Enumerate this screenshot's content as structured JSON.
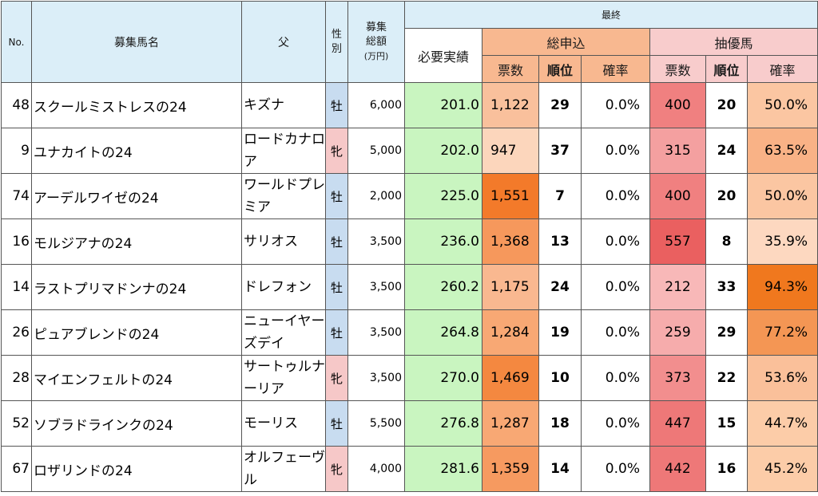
{
  "headers": {
    "no": "No.",
    "name": "募集馬名",
    "sire": "父",
    "sex": [
      "性",
      "別"
    ],
    "amount": [
      "募集",
      "総額",
      "(万円)"
    ],
    "final": "最終",
    "required": "必要実績",
    "total": "総申込",
    "lottery": "抽優馬",
    "votes": "票数",
    "rank": "順位",
    "rate": "確率"
  },
  "colors": {
    "header_blue": "#dbeef8",
    "header_orange": "#f8b890",
    "header_pink": "#f8cccc",
    "required_green": "#c9f5c0",
    "male": "#c8dcf0",
    "female": "#f6c8c8"
  },
  "rows": [
    {
      "no": "48",
      "name": "スクールミストレスの24",
      "sire": "キズナ",
      "sex": "牡",
      "sex_type": "male",
      "amount": "6,000",
      "required": "201.0",
      "total_votes": "1,122",
      "total_rank": "29",
      "total_rate": "0.0%",
      "lot_votes": "400",
      "lot_rank": "20",
      "lot_rate": "50.0%",
      "total_color": "#f9c09c",
      "lot_color": "#f08080",
      "rate_color": "#fbc6a2"
    },
    {
      "no": "9",
      "name": "ユナカイトの24",
      "sire": "ロードカナロア",
      "sex": "牝",
      "sex_type": "female",
      "amount": "5,000",
      "required": "202.0",
      "total_votes": "947",
      "total_rank": "37",
      "total_rate": "0.0%",
      "lot_votes": "315",
      "lot_rank": "24",
      "lot_rate": "63.5%",
      "total_color": "#fcd6bc",
      "lot_color": "#f4a0a0",
      "rate_color": "#f9b286"
    },
    {
      "no": "74",
      "name": "アーデルワイゼの24",
      "sire": "ワールドプレミア",
      "sex": "牡",
      "sex_type": "male",
      "amount": "2,000",
      "required": "225.0",
      "total_votes": "1,551",
      "total_rank": "7",
      "total_rate": "0.0%",
      "lot_votes": "400",
      "lot_rank": "20",
      "lot_rate": "50.0%",
      "total_color": "#f37a2a",
      "lot_color": "#f08080",
      "rate_color": "#fbc6a2"
    },
    {
      "no": "16",
      "name": "モルジアナの24",
      "sire": "サリオス",
      "sex": "牡",
      "sex_type": "male",
      "amount": "3,500",
      "required": "236.0",
      "total_votes": "1,368",
      "total_rank": "13",
      "total_rate": "0.0%",
      "lot_votes": "557",
      "lot_rank": "8",
      "lot_rate": "35.9%",
      "total_color": "#f6985c",
      "lot_color": "#ea6060",
      "rate_color": "#fdd8c0"
    },
    {
      "no": "14",
      "name": "ラストプリマドンナの24",
      "sire": "ドレフォン",
      "sex": "牡",
      "sex_type": "male",
      "amount": "3,500",
      "required": "260.2",
      "total_votes": "1,175",
      "total_rank": "24",
      "total_rate": "0.0%",
      "lot_votes": "212",
      "lot_rank": "33",
      "lot_rate": "94.3%",
      "total_color": "#f9b890",
      "lot_color": "#f8b8b8",
      "rate_color": "#f0781e"
    },
    {
      "no": "26",
      "name": "ピュアブレンドの24",
      "sire": "ニューイヤーズデイ",
      "sex": "牡",
      "sex_type": "male",
      "amount": "3,500",
      "required": "264.8",
      "total_votes": "1,284",
      "total_rank": "19",
      "total_rate": "0.0%",
      "lot_votes": "259",
      "lot_rank": "29",
      "lot_rate": "77.2%",
      "total_color": "#f8a874",
      "lot_color": "#f6acac",
      "rate_color": "#f49654"
    },
    {
      "no": "28",
      "name": "マイエンフェルトの24",
      "sire": "サートゥルナーリア",
      "sex": "牝",
      "sex_type": "female",
      "amount": "3,500",
      "required": "270.0",
      "total_votes": "1,469",
      "total_rank": "10",
      "total_rate": "0.0%",
      "lot_votes": "373",
      "lot_rank": "22",
      "lot_rate": "53.6%",
      "total_color": "#f48840",
      "lot_color": "#f28e8e",
      "rate_color": "#fac09a"
    },
    {
      "no": "52",
      "name": "ソブラドラインクの24",
      "sire": "モーリス",
      "sex": "牡",
      "sex_type": "male",
      "amount": "5,500",
      "required": "276.8",
      "total_votes": "1,287",
      "total_rank": "18",
      "total_rate": "0.0%",
      "lot_votes": "447",
      "lot_rank": "15",
      "lot_rate": "44.7%",
      "total_color": "#f8a874",
      "lot_color": "#ee7878",
      "rate_color": "#fccca8"
    },
    {
      "no": "67",
      "name": "ロザリンドの24",
      "sire": "オルフェーヴル",
      "sex": "牝",
      "sex_type": "female",
      "amount": "4,000",
      "required": "281.6",
      "total_votes": "1,359",
      "total_rank": "14",
      "total_rate": "0.0%",
      "lot_votes": "442",
      "lot_rank": "16",
      "lot_rate": "45.2%",
      "total_color": "#f69a60",
      "lot_color": "#ee7878",
      "rate_color": "#fccca8"
    }
  ]
}
